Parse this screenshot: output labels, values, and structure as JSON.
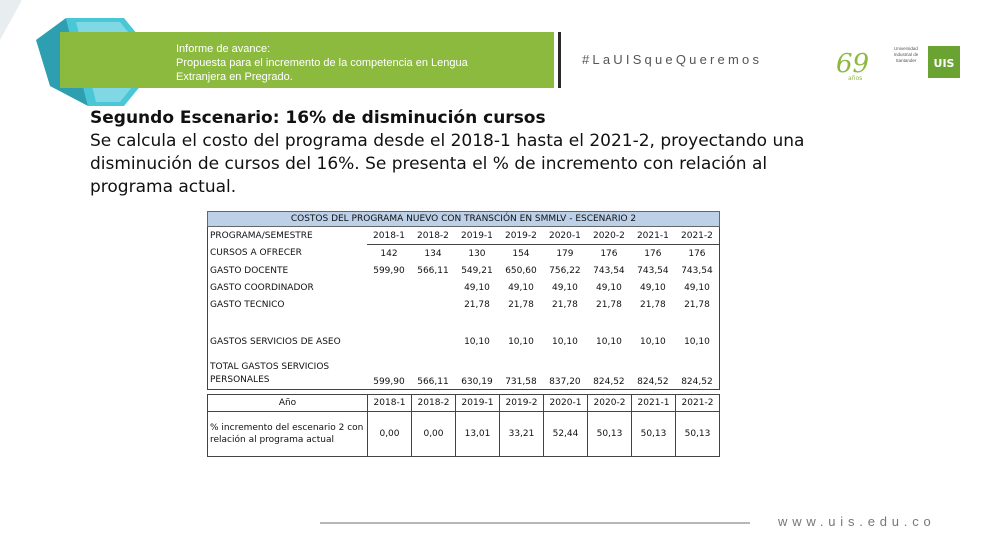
{
  "header": {
    "report_lines": [
      "Informe de avance:",
      "Propuesta para el incremento de la competencia en Lengua",
      "Extranjera en Pregrado."
    ],
    "hashtag": "#LaUISqueQueremos",
    "anniversary_text": "años",
    "university_name": "Universidad Industrial de Santander",
    "brand_green": "#8cba3f",
    "accent_cyan": "#4ac7d7"
  },
  "heading": "Segundo Escenario: 16% de disminución cursos",
  "paragraph_lines": [
    "Se calcula el costo del programa desde el 2018-1 hasta el 2021-2, proyectando una",
    "disminución de cursos del 16%. Se presenta el % de incremento con relación al",
    "programa actual."
  ],
  "costs_table": {
    "title": "COSTOS DEL PROGRAMA NUEVO CON TRANSCIÓN EN SMMLV - ESCENARIO 2",
    "header_label": "PROGRAMA/SEMESTRE",
    "semesters": [
      "2018-1",
      "2018-2",
      "2019-1",
      "2019-2",
      "2020-1",
      "2020-2",
      "2021-1",
      "2021-2"
    ],
    "rows": [
      {
        "label": "CURSOS A OFRECER",
        "values": [
          "142",
          "134",
          "130",
          "154",
          "179",
          "176",
          "176",
          "176"
        ]
      },
      {
        "label": "GASTO DOCENTE",
        "values": [
          "599,90",
          "566,11",
          "549,21",
          "650,60",
          "756,22",
          "743,54",
          "743,54",
          "743,54"
        ]
      },
      {
        "label": "GASTO COORDINADOR",
        "values": [
          "",
          "",
          "49,10",
          "49,10",
          "49,10",
          "49,10",
          "49,10",
          "49,10"
        ]
      },
      {
        "label": "GASTO TECNICO",
        "values": [
          "",
          "",
          "21,78",
          "21,78",
          "21,78",
          "21,78",
          "21,78",
          "21,78"
        ]
      },
      {
        "label": "GASTOS SERVICIOS DE ASEO",
        "values": [
          "",
          "",
          "10,10",
          "10,10",
          "10,10",
          "10,10",
          "10,10",
          "10,10"
        ]
      },
      {
        "label": "TOTAL GASTOS SERVICIOS PERSONALES",
        "values": [
          "599,90",
          "566,11",
          "630,19",
          "731,58",
          "837,20",
          "824,52",
          "824,52",
          "824,52"
        ]
      }
    ]
  },
  "increment_table": {
    "year_label": "Año",
    "semesters": [
      "2018-1",
      "2018-2",
      "2019-1",
      "2019-2",
      "2020-1",
      "2020-2",
      "2021-1",
      "2021-2"
    ],
    "row_label": "% incremento del escenario 2 con relación al programa actual",
    "values": [
      "0,00",
      "0,00",
      "13,01",
      "33,21",
      "52,44",
      "50,13",
      "50,13",
      "50,13"
    ]
  },
  "footer": {
    "url": "www.uis.edu.co"
  }
}
